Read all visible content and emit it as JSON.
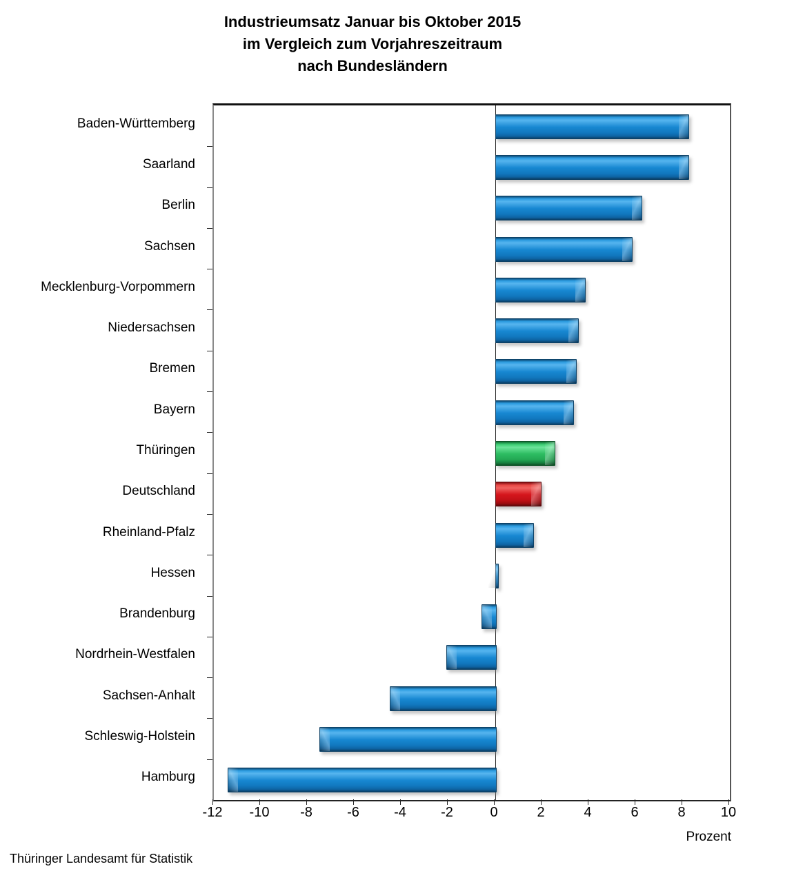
{
  "title": {
    "line1": "Industrieumsatz Januar bis Oktober 2015",
    "line2": "im Vergleich zum Vorjahreszeitraum",
    "line3": "nach Bundesländern"
  },
  "source": "Thüringer Landesamt für Statistik",
  "axis": {
    "unit_label": "Prozent",
    "tick_values": [
      -12,
      -10,
      -8,
      -6,
      -4,
      -2,
      0,
      2,
      4,
      6,
      8,
      10
    ],
    "min": -12,
    "max": 10
  },
  "colors": {
    "bar_blue": "#1787d1",
    "bar_green": "#2dbd62",
    "bar_red": "#d5161d",
    "text": "#000000",
    "background": "#ffffff"
  },
  "chart_data": {
    "type": "bar",
    "orientation": "horizontal",
    "title": "Industrieumsatz Januar bis Oktober 2015 im Vergleich zum Vorjahreszeitraum nach Bundesländern",
    "xlabel": "Prozent",
    "xlim": [
      -12,
      10
    ],
    "grid": false,
    "legend": false,
    "categories": [
      "Baden-Württemberg",
      "Saarland",
      "Berlin",
      "Sachsen",
      "Mecklenburg-Vorpommern",
      "Niedersachsen",
      "Bremen",
      "Bayern",
      "Thüringen",
      "Deutschland",
      "Rheinland-Pfalz",
      "Hessen",
      "Brandenburg",
      "Nordrhein-Westfalen",
      "Sachsen-Anhalt",
      "Schleswig-Holstein",
      "Hamburg"
    ],
    "values": [
      8.2,
      8.2,
      6.2,
      5.8,
      3.8,
      3.5,
      3.4,
      3.3,
      2.5,
      1.9,
      1.6,
      0.1,
      -0.6,
      -2.1,
      -4.5,
      -7.5,
      -11.4
    ],
    "bar_colors": [
      "blue",
      "blue",
      "blue",
      "blue",
      "blue",
      "blue",
      "blue",
      "blue",
      "green",
      "red",
      "blue",
      "blue",
      "blue",
      "blue",
      "blue",
      "blue",
      "blue"
    ],
    "highlight_notes": {
      "green_bar": "Thüringen",
      "red_bar": "Deutschland"
    },
    "source": "Thüringer Landesamt für Statistik"
  }
}
